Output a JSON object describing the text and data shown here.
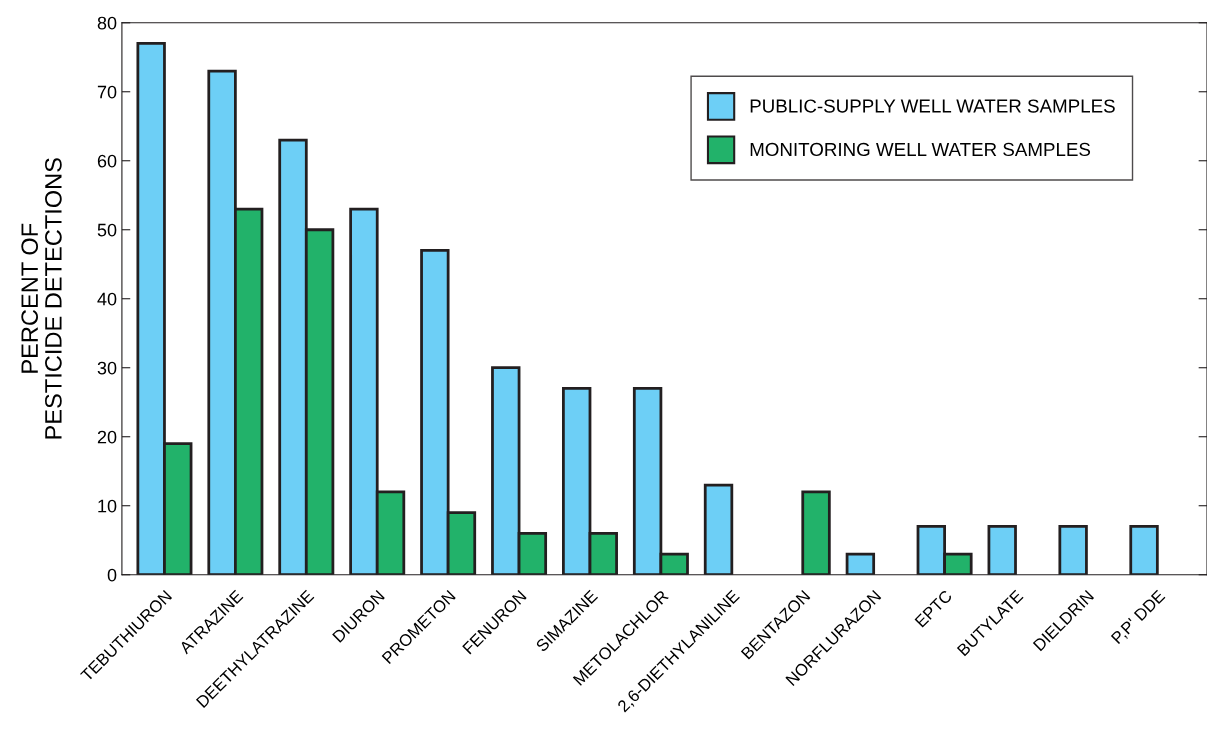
{
  "chart_data": {
    "type": "bar",
    "ylabel": "PERCENT OF\nPESTICIDE DETECTIONS",
    "categories": [
      "TEBUTHIURON",
      "ATRAZINE",
      "DEETHYLATRAZINE",
      "DIURON",
      "PROMETON",
      "FENURON",
      "SIMAZINE",
      "METOLACHLOR",
      "2,6-DIETHYLANILINE",
      "BENTAZON",
      "NORFLURAZON",
      "EPTC",
      "BUTYLATE",
      "DIELDRIN",
      "P,P' DDE"
    ],
    "series": [
      {
        "name": "PUBLIC-SUPPLY WELL WATER SAMPLES",
        "color": "#6dcff6",
        "values": [
          77,
          73,
          63,
          53,
          47,
          30,
          27,
          27,
          13,
          null,
          3,
          7,
          7,
          7,
          7
        ]
      },
      {
        "name": "MONITORING WELL WATER SAMPLES",
        "color": "#22b26a",
        "values": [
          19,
          53,
          50,
          12,
          9,
          6,
          6,
          3,
          null,
          12,
          null,
          3,
          null,
          null,
          null
        ]
      }
    ],
    "ylim": [
      0,
      80
    ],
    "yticks": [
      0,
      10,
      20,
      30,
      40,
      50,
      60,
      70,
      80
    ],
    "grid": false,
    "legend": "top right"
  }
}
